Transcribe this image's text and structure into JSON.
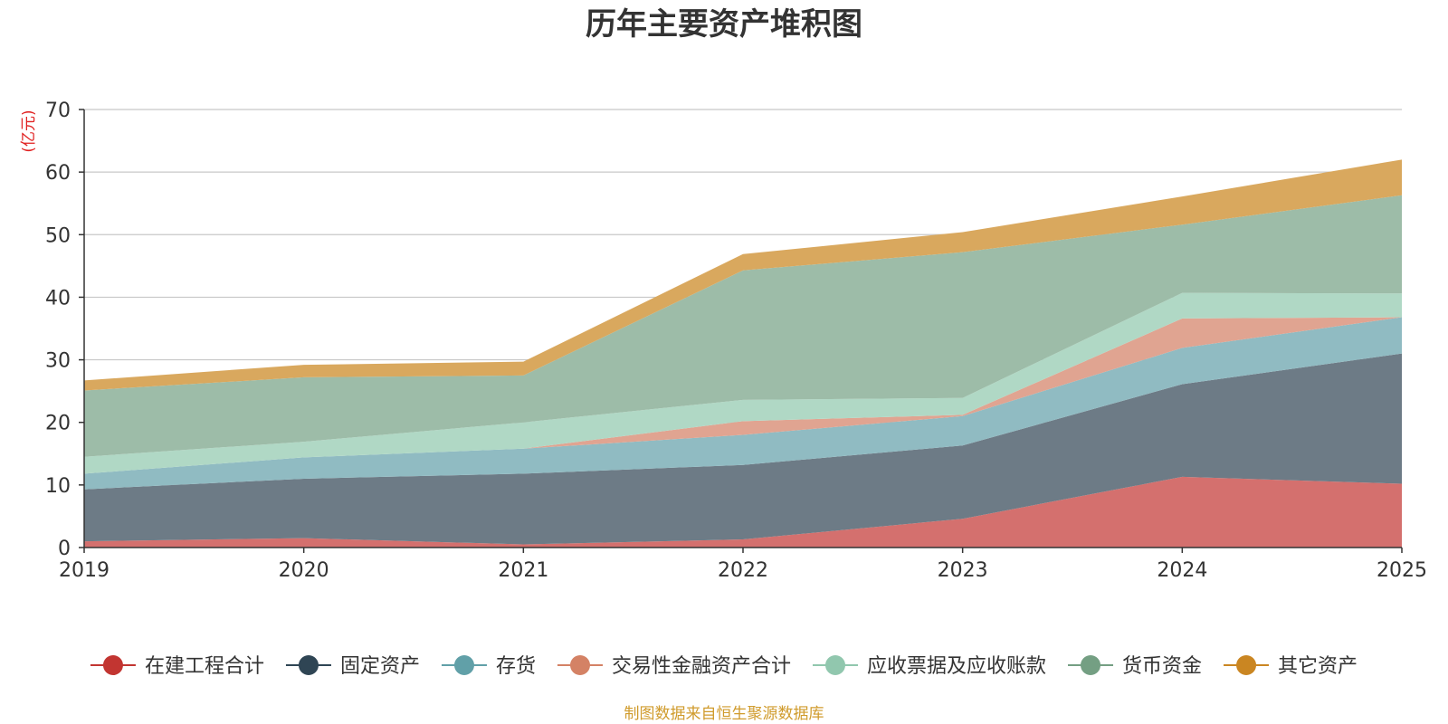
{
  "chart_data": {
    "type": "area",
    "stacked": true,
    "title": "历年主要资产堆积图",
    "unit_label": "(亿元)",
    "xlabel": "",
    "ylabel": "(亿元)",
    "categories": [
      "2019",
      "2020",
      "2021",
      "2022",
      "2023",
      "2024",
      "2025"
    ],
    "ylim": [
      0,
      70
    ],
    "yticks": [
      0,
      10,
      20,
      30,
      40,
      50,
      60,
      70
    ],
    "grid": true,
    "legend_position": "bottom",
    "series": [
      {
        "name": "在建工程合计",
        "color": "#c23531",
        "fill": "#d4706e",
        "values": [
          1.0,
          1.5,
          0.5,
          1.3,
          4.6,
          11.3,
          10.2
        ]
      },
      {
        "name": "固定资产",
        "color": "#2f4554",
        "fill": "#6d7b86",
        "values": [
          8.3,
          9.5,
          11.3,
          11.9,
          11.7,
          14.8,
          20.8
        ]
      },
      {
        "name": "存货",
        "color": "#61a0a8",
        "fill": "#90bbc2",
        "values": [
          2.5,
          3.4,
          4.0,
          4.8,
          4.7,
          5.8,
          5.8
        ]
      },
      {
        "name": "交易性金融资产合计",
        "color": "#d48265",
        "fill": "#e0a491",
        "values": [
          0.0,
          0.0,
          0.0,
          2.2,
          0.2,
          4.7,
          0.0
        ]
      },
      {
        "name": "应收票据及应收账款",
        "color": "#91c7ae",
        "fill": "#b0d8c5",
        "values": [
          2.7,
          2.5,
          4.2,
          3.4,
          2.7,
          4.1,
          3.8
        ]
      },
      {
        "name": "货币资金",
        "color": "#749f83",
        "fill": "#9dbca8",
        "values": [
          10.6,
          10.3,
          7.5,
          20.7,
          23.3,
          10.9,
          15.7
        ]
      },
      {
        "name": "其它资产",
        "color": "#ca8622",
        "fill": "#d9a85e",
        "values": [
          1.6,
          2.0,
          2.2,
          2.6,
          3.2,
          4.5,
          5.7
        ]
      }
    ]
  },
  "footer": {
    "source_text": "制图数据来自恒生聚源数据库",
    "source_color": "#d09b2c"
  },
  "unit_color": "#e02020"
}
